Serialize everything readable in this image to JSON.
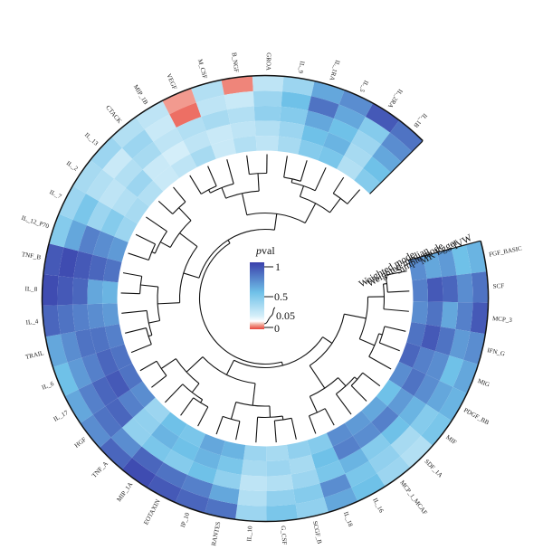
{
  "chart_data": {
    "type": "heatmap",
    "layout": "circular",
    "categories": [
      "FGF_BASIC",
      "SCF",
      "MCP_3",
      "IFN_G",
      "MIG",
      "PDGF_BB",
      "MIF",
      "SDF_1A",
      "MCP_1_MCAF",
      "IL_16",
      "IL_18",
      "SCGF_B",
      "G_CSF",
      "IL_10",
      "RANTES",
      "IP_10",
      "EOTAXIN",
      "MIP_1A",
      "TNF_A",
      "HGF",
      "IL_17",
      "IL_6",
      "TRAIL",
      "IL_4",
      "IL_8",
      "TNF_B",
      "IL_12_P70",
      "IL_7",
      "IL_2",
      "IL_13",
      "CTACK",
      "MIP_1B",
      "VEGF",
      "M_CSF",
      "B_NGF",
      "GROA",
      "IL_9",
      "IL_1RA",
      "IL_5",
      "IL_2RA",
      "IL_1B"
    ],
    "methods": [
      "IVW",
      "MR Egger",
      "Simple mode",
      "Weighted median",
      "Weighted mode"
    ],
    "series": [
      {
        "name": "IVW",
        "values": [
          0.55,
          0.8,
          0.9,
          0.7,
          0.6,
          0.55,
          0.45,
          0.2,
          0.3,
          0.5,
          0.6,
          0.35,
          0.45,
          0.3,
          0.8,
          0.85,
          0.9,
          0.95,
          0.85,
          0.7,
          0.6,
          0.5,
          0.6,
          0.85,
          0.95,
          0.9,
          0.4,
          0.3,
          0.25,
          0.3,
          0.2,
          0.15,
          0.04,
          0.2,
          0.03,
          0.15,
          0.3,
          0.6,
          0.7,
          0.9,
          0.8
        ]
      },
      {
        "name": "MR Egger",
        "values": [
          0.5,
          0.7,
          0.75,
          0.65,
          0.5,
          0.6,
          0.4,
          0.25,
          0.35,
          0.45,
          0.7,
          0.4,
          0.35,
          0.2,
          0.6,
          0.75,
          0.8,
          0.85,
          0.7,
          0.8,
          0.75,
          0.65,
          0.7,
          0.8,
          0.9,
          0.95,
          0.6,
          0.45,
          0.2,
          0.1,
          0.3,
          0.1,
          0.02,
          0.15,
          0.1,
          0.3,
          0.5,
          0.8,
          0.6,
          0.4,
          0.7
        ]
      },
      {
        "name": "Simple mode",
        "values": [
          0.65,
          0.85,
          0.6,
          0.8,
          0.7,
          0.7,
          0.55,
          0.5,
          0.4,
          0.55,
          0.45,
          0.3,
          0.2,
          0.15,
          0.35,
          0.5,
          0.4,
          0.45,
          0.35,
          0.85,
          0.85,
          0.75,
          0.8,
          0.75,
          0.85,
          0.9,
          0.75,
          0.3,
          0.15,
          0.2,
          0.25,
          0.15,
          0.2,
          0.25,
          0.2,
          0.35,
          0.4,
          0.6,
          0.5,
          0.3,
          0.6
        ]
      },
      {
        "name": "Weighted median",
        "values": [
          0.6,
          0.9,
          0.8,
          0.9,
          0.75,
          0.8,
          0.65,
          0.75,
          0.7,
          0.75,
          0.5,
          0.25,
          0.3,
          0.25,
          0.45,
          0.55,
          0.5,
          0.55,
          0.35,
          0.75,
          0.9,
          0.85,
          0.8,
          0.7,
          0.6,
          0.85,
          0.7,
          0.4,
          0.2,
          0.3,
          0.1,
          0.05,
          0.15,
          0.1,
          0.15,
          0.2,
          0.3,
          0.5,
          0.55,
          0.25,
          0.5
        ]
      },
      {
        "name": "Weighted mode",
        "values": [
          0.7,
          0.75,
          0.7,
          0.8,
          0.85,
          0.7,
          0.5,
          0.6,
          0.65,
          0.7,
          0.4,
          0.35,
          0.25,
          0.3,
          0.55,
          0.6,
          0.45,
          0.5,
          0.3,
          0.7,
          0.8,
          0.8,
          0.75,
          0.65,
          0.55,
          0.8,
          0.65,
          0.3,
          0.25,
          0.2,
          0.1,
          0.15,
          0.25,
          0.1,
          0.2,
          0.15,
          0.25,
          0.4,
          0.45,
          0.2,
          0.4
        ]
      }
    ],
    "legend": {
      "title_prefix": "p",
      "title_suffix": "val",
      "ticks": [
        "1",
        "0.5",
        "0.05",
        "0"
      ]
    },
    "colors": {
      "low": "#e8443a",
      "mid_low": "#d4eef9",
      "mid": "#6fc1e8",
      "high": "#3a3fab"
    }
  }
}
